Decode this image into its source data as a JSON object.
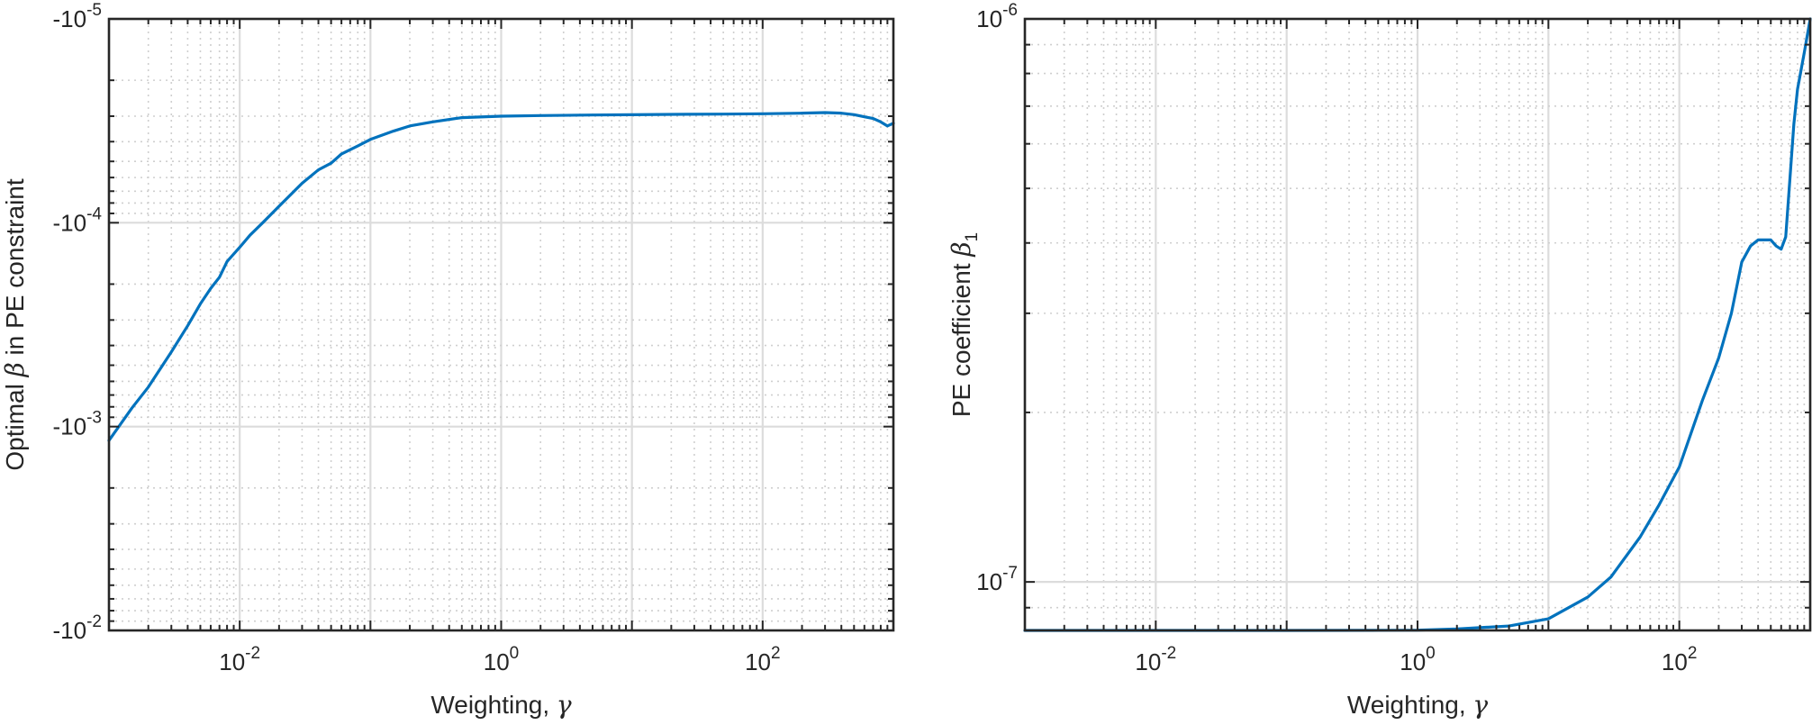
{
  "chart_data": [
    {
      "type": "line",
      "xlabel": "Weighting, γ",
      "xlabel_parts": {
        "text": "Weighting, ",
        "symbol": "γ"
      },
      "ylabel": "Optimal β in PE constraint",
      "ylabel_parts": {
        "pre": "Optimal ",
        "symbol": "β",
        "post": " in PE constraint"
      },
      "x_scale": "log",
      "y_scale": "log (reversed, negative values)",
      "xlim": [
        0.001,
        1000
      ],
      "ylim": [
        -0.01,
        -1e-05
      ],
      "x_ticks": [
        {
          "value": 0.01,
          "base": "10",
          "exp": "-2"
        },
        {
          "value": 1,
          "base": "10",
          "exp": "0"
        },
        {
          "value": 100,
          "base": "10",
          "exp": "2"
        }
      ],
      "y_ticks": [
        {
          "value": -1e-05,
          "base": "-10",
          "exp": "-5"
        },
        {
          "value": -0.0001,
          "base": "-10",
          "exp": "-4"
        },
        {
          "value": -0.001,
          "base": "-10",
          "exp": "-3"
        },
        {
          "value": -0.01,
          "base": "-10",
          "exp": "-2"
        }
      ],
      "grid": true,
      "minor_grid": true,
      "series": [
        {
          "color": "#0072BD",
          "x": [
            0.001,
            0.0015,
            0.002,
            0.003,
            0.004,
            0.005,
            0.006,
            0.007,
            0.008,
            0.01,
            0.012,
            0.015,
            0.02,
            0.03,
            0.04,
            0.05,
            0.06,
            0.08,
            0.1,
            0.15,
            0.2,
            0.3,
            0.5,
            1,
            2,
            5,
            10,
            20,
            50,
            100,
            200,
            300,
            400,
            500,
            600,
            700,
            800,
            900,
            1000
          ],
          "y": [
            -0.00117,
            -0.00081,
            -0.00064,
            -0.00043,
            -0.00032,
            -0.00025,
            -0.00021,
            -0.000185,
            -0.000155,
            -0.000132,
            -0.000115,
            -0.0001,
            -8.3e-05,
            -6.4e-05,
            -5.5e-05,
            -5.1e-05,
            -4.6e-05,
            -4.2e-05,
            -3.9e-05,
            -3.55e-05,
            -3.35e-05,
            -3.2e-05,
            -3.05e-05,
            -3e-05,
            -2.98e-05,
            -2.96e-05,
            -2.95e-05,
            -2.94e-05,
            -2.93e-05,
            -2.92e-05,
            -2.9e-05,
            -2.88e-05,
            -2.9e-05,
            -2.95e-05,
            -3.02e-05,
            -3.08e-05,
            -3.2e-05,
            -3.35e-05,
            -3.25e-05
          ]
        }
      ]
    },
    {
      "type": "line",
      "xlabel": "Weighting, γ",
      "xlabel_parts": {
        "text": "Weighting, ",
        "symbol": "γ"
      },
      "ylabel": "PE coefficient β1",
      "ylabel_parts": {
        "pre": "PE coefficient ",
        "symbol": "β",
        "sub": "1"
      },
      "x_scale": "log",
      "y_scale": "log",
      "xlim": [
        0.001,
        1000
      ],
      "ylim": [
        8.2e-08,
        1e-06
      ],
      "x_ticks": [
        {
          "value": 0.01,
          "base": "10",
          "exp": "-2"
        },
        {
          "value": 1,
          "base": "10",
          "exp": "0"
        },
        {
          "value": 100,
          "base": "10",
          "exp": "2"
        }
      ],
      "y_ticks": [
        {
          "value": 1e-07,
          "base": "10",
          "exp": "-7"
        },
        {
          "value": 1e-06,
          "base": "10",
          "exp": "-6"
        }
      ],
      "grid": true,
      "minor_grid": true,
      "series": [
        {
          "color": "#0072BD",
          "x": [
            0.001,
            0.01,
            0.1,
            0.5,
            1,
            2,
            5,
            10,
            20,
            30,
            50,
            70,
            100,
            150,
            200,
            250,
            300,
            350,
            400,
            500,
            550,
            600,
            650,
            700,
            750,
            800,
            900,
            1000
          ],
          "y": [
            8.2e-08,
            8.2e-08,
            8.2e-08,
            8.205e-08,
            8.21e-08,
            8.25e-08,
            8.35e-08,
            8.6e-08,
            9.4e-08,
            1.02e-07,
            1.2e-07,
            1.37e-07,
            1.6e-07,
            2.1e-07,
            2.5e-07,
            3e-07,
            3.7e-07,
            3.95e-07,
            4.05e-07,
            4.05e-07,
            3.95e-07,
            3.9e-07,
            4.1e-07,
            5.2e-07,
            6.5e-07,
            7.5e-07,
            8.7e-07,
            1e-06
          ]
        }
      ]
    }
  ]
}
